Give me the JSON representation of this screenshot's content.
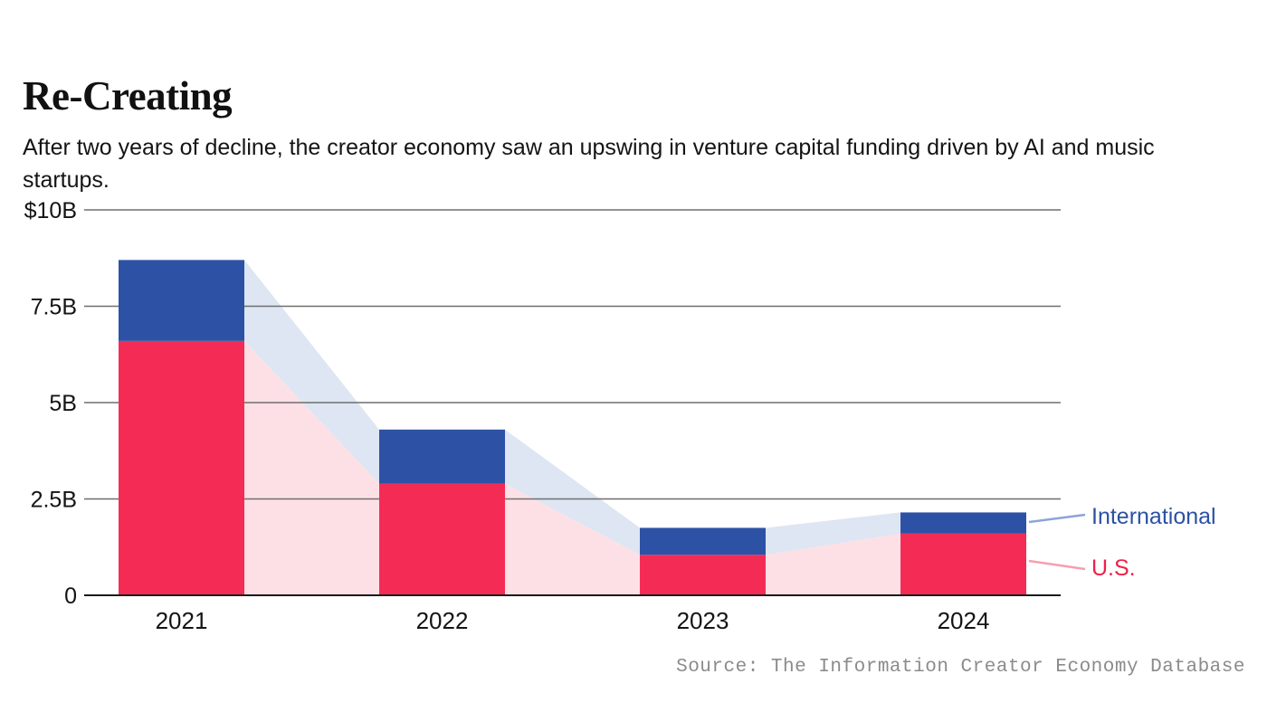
{
  "header": {
    "title": "Re-Creating",
    "subtitle": "After two years of decline, the creator economy saw an upswing in venture capital funding driven by AI and music startups."
  },
  "source": {
    "text": "Source: The Information Creator Economy Database"
  },
  "chart_data": {
    "type": "bar",
    "subtype": "stacked-bars-with-flow-bands",
    "title": "Re-Creating",
    "categories": [
      "2021",
      "2022",
      "2023",
      "2024"
    ],
    "series": [
      {
        "name": "U.S.",
        "values": [
          6.6,
          2.9,
          1.05,
          1.6
        ],
        "color": "#f42c55",
        "band_color": "#fde0e6",
        "label_color": "#ee2147",
        "leader_color": "#f59fae"
      },
      {
        "name": "International",
        "values": [
          2.1,
          1.4,
          0.7,
          0.55
        ],
        "color": "#2d52a5",
        "band_color": "#dde6f2",
        "label_color": "#2b51a3",
        "leader_color": "#8ba4d9"
      }
    ],
    "totals": [
      8.7,
      4.3,
      1.75,
      2.15
    ],
    "xlabel": "",
    "ylabel": "",
    "ylim": [
      0,
      10
    ],
    "yticks": [
      {
        "label": "$10B",
        "value": 10
      },
      {
        "label": "7.5B",
        "value": 7.5
      },
      {
        "label": "5B",
        "value": 5
      },
      {
        "label": "2.5B",
        "value": 2.5
      },
      {
        "label": "0",
        "value": 0
      }
    ],
    "grid": "horizontal",
    "gridline_color": "#6e6e6e",
    "axis_color": "#1a1a1a",
    "legend_position": "right-of-last-bar",
    "legend": [
      "International",
      "U.S."
    ]
  }
}
